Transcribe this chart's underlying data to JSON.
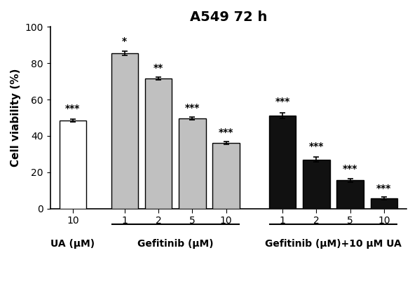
{
  "title": "A549 72 h",
  "ylabel": "Cell viability (%)",
  "ylim": [
    0,
    100
  ],
  "yticks": [
    0,
    20,
    40,
    60,
    80,
    100
  ],
  "bar_values": [
    48.5,
    85.5,
    71.5,
    49.5,
    36.0,
    51.0,
    27.0,
    15.5,
    5.5
  ],
  "bar_errors": [
    0.8,
    1.0,
    0.8,
    0.8,
    0.8,
    1.5,
    1.5,
    1.0,
    0.8
  ],
  "bar_colors": [
    "#ffffff",
    "#c0c0c0",
    "#c0c0c0",
    "#c0c0c0",
    "#c0c0c0",
    "#111111",
    "#111111",
    "#111111",
    "#111111"
  ],
  "bar_edge_colors": [
    "#000000",
    "#000000",
    "#000000",
    "#000000",
    "#000000",
    "#000000",
    "#000000",
    "#000000",
    "#000000"
  ],
  "significance": [
    "***",
    "*",
    "**",
    "***",
    "***",
    "***",
    "***",
    "***",
    "***"
  ],
  "sig_offsets": [
    3.0,
    3.0,
    2.5,
    2.5,
    2.5,
    3.5,
    3.0,
    2.5,
    2.0
  ],
  "x_tick_labels": [
    "10",
    "1",
    "2",
    "5",
    "10",
    "1",
    "2",
    "5",
    "10"
  ],
  "group_labels": [
    "UA (μM)",
    "Gefitinib (μM)",
    "Gefitinib (μM)+10 μM UA"
  ],
  "background_color": "#ffffff",
  "title_fontsize": 14,
  "axis_fontsize": 11,
  "tick_fontsize": 10,
  "sig_fontsize": 10,
  "group_label_fontsize": 10
}
